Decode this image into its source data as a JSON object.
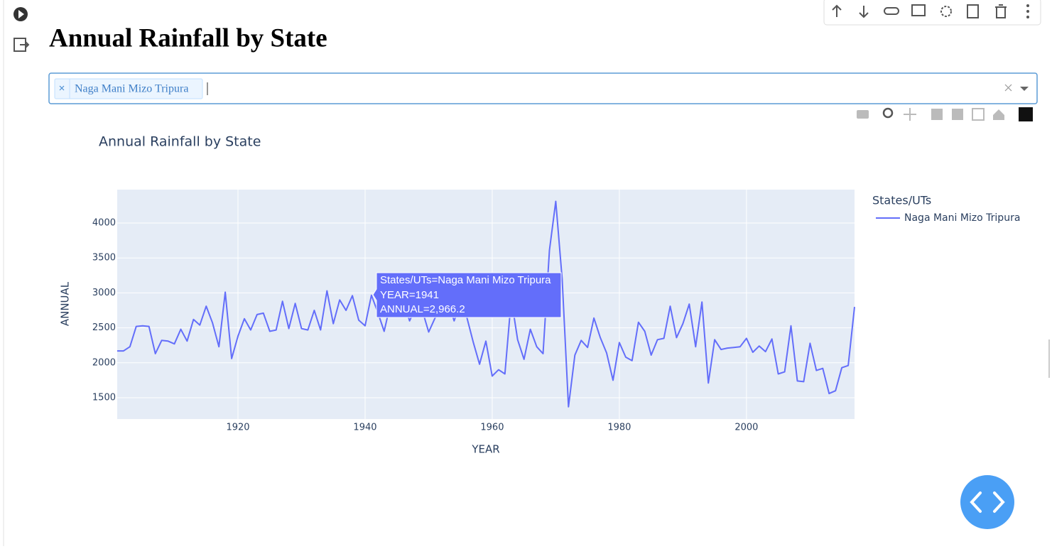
{
  "page": {
    "heading": "Annual Rainfall by State",
    "selector": {
      "selected": [
        "Naga Mani Mizo Tripura"
      ]
    }
  },
  "chart_data": {
    "type": "line",
    "title": "Annual Rainfall by State",
    "x_label": "YEAR",
    "y_label": "ANNUAL",
    "legend_title": "States/UTs",
    "x": [
      1901,
      1902,
      1903,
      1904,
      1905,
      1906,
      1907,
      1908,
      1909,
      1910,
      1911,
      1912,
      1913,
      1914,
      1915,
      1916,
      1917,
      1918,
      1919,
      1920,
      1921,
      1922,
      1923,
      1924,
      1925,
      1926,
      1927,
      1928,
      1929,
      1930,
      1931,
      1932,
      1933,
      1934,
      1935,
      1936,
      1937,
      1938,
      1939,
      1940,
      1941,
      1942,
      1943,
      1944,
      1945,
      1946,
      1947,
      1948,
      1949,
      1950,
      1951,
      1952,
      1953,
      1954,
      1955,
      1956,
      1957,
      1958,
      1959,
      1960,
      1961,
      1962,
      1963,
      1964,
      1965,
      1966,
      1967,
      1968,
      1969,
      1970,
      1971,
      1972,
      1973,
      1974,
      1975,
      1976,
      1977,
      1978,
      1979,
      1980,
      1981,
      1982,
      1983,
      1984,
      1985,
      1986,
      1987,
      1988,
      1989,
      1990,
      1991,
      1992,
      1993,
      1994,
      1995,
      1996,
      1997,
      1998,
      1999,
      2000,
      2001,
      2002,
      2003,
      2004,
      2005,
      2006,
      2007,
      2008,
      2009,
      2010,
      2011,
      2012,
      2013,
      2014,
      2015,
      2016,
      2017
    ],
    "series": [
      {
        "name": "Naga Mani Mizo Tripura",
        "color": "#636efa",
        "values": [
          2170,
          2170,
          2230,
          2520,
          2530,
          2520,
          2130,
          2320,
          2310,
          2270,
          2480,
          2310,
          2620,
          2540,
          2810,
          2570,
          2230,
          3010,
          2060,
          2380,
          2630,
          2470,
          2690,
          2710,
          2450,
          2470,
          2880,
          2490,
          2850,
          2490,
          2470,
          2750,
          2470,
          3030,
          2560,
          2900,
          2750,
          2960,
          2610,
          2530,
          2966.2,
          2720,
          2450,
          2850,
          2700,
          2900,
          2600,
          2800,
          2750,
          2440,
          2640,
          2750,
          2900,
          2600,
          2850,
          2650,
          2300,
          1980,
          2310,
          1810,
          1900,
          1840,
          2920,
          2330,
          2050,
          2480,
          2230,
          2130,
          3610,
          4310,
          3200,
          1370,
          2110,
          2320,
          2220,
          2640,
          2360,
          2140,
          1750,
          2290,
          2080,
          2030,
          2580,
          2450,
          2110,
          2330,
          2350,
          2810,
          2360,
          2560,
          2840,
          2230,
          2870,
          1710,
          2330,
          2190,
          2210,
          2220,
          2230,
          2350,
          2150,
          2240,
          2160,
          2340,
          1840,
          1870,
          2530,
          1740,
          1730,
          2280,
          1890,
          1920,
          1560,
          1600,
          1930,
          1960,
          2800
        ]
      }
    ],
    "xlim": [
      1901,
      2017
    ],
    "ylim": [
      1195,
      4478
    ],
    "xticks": [
      1920,
      1940,
      1960,
      1980,
      2000
    ],
    "yticks": [
      1500,
      2000,
      2500,
      3000,
      3500,
      4000
    ],
    "grid": true,
    "plot_bg": "#e5ecf6",
    "hover": [
      "States/UTs=Naga Mani Mizo Tripura",
      "YEAR=1941",
      "ANNUAL=2,966.2"
    ]
  }
}
